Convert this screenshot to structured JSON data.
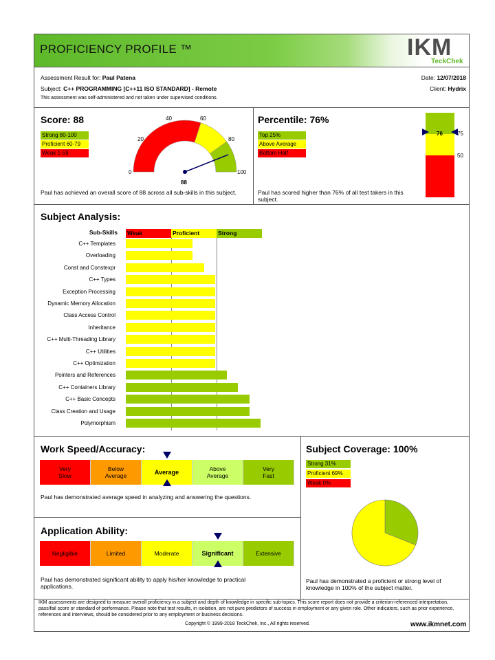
{
  "header": {
    "title": "PROFICIENCY PROFILE ™",
    "logo_main": "IKM",
    "logo_sub": "TeckChek"
  },
  "info": {
    "result_label": "Assessment Result for:",
    "candidate": "Paul Patena",
    "subject_label": "Subject:",
    "subject": "C++ PROGRAMMING [C++11 ISO STANDARD] - Remote",
    "note": "This assessment was self-administered and not taken under supervised conditions.",
    "date_label": "Date:",
    "date": "12/07/2018",
    "client_label": "Client:",
    "client": "Hydrix"
  },
  "score": {
    "title": "Score: 88",
    "value": 88,
    "legend": [
      "Strong 80-100",
      "Proficient 60-79",
      "Weak 1-59"
    ],
    "gauge_ticks": [
      "0",
      "20",
      "40",
      "60",
      "80",
      "100"
    ],
    "needle_label": "88",
    "summary": "Paul has achieved an overall score of 88 across all sub-skills in this subject."
  },
  "percentile": {
    "title": "Percentile: 76%",
    "value": 76,
    "legend": [
      "Top 25%",
      "Above Average",
      "Bottom Half"
    ],
    "bar_labels": [
      "75",
      "50"
    ],
    "marker_label": "76",
    "summary": "Paul has scored higher than 76% of all test takers in this subject."
  },
  "subject_analysis": {
    "title": "Subject Analysis:",
    "header_label": "Sub-Skills",
    "levels": [
      "Weak",
      "Proficient",
      "Strong"
    ],
    "skills": [
      {
        "name": "C++ Templates",
        "level": 0.59,
        "cat": "proficient"
      },
      {
        "name": "Overloading",
        "level": 0.59,
        "cat": "proficient"
      },
      {
        "name": "Const and Constexpr",
        "level": 0.69,
        "cat": "proficient"
      },
      {
        "name": "C++ Types",
        "level": 0.79,
        "cat": "proficient"
      },
      {
        "name": "Exception Processing",
        "level": 0.79,
        "cat": "proficient"
      },
      {
        "name": "Dynamic Memory Allocation",
        "level": 0.79,
        "cat": "proficient"
      },
      {
        "name": "Class Access Control",
        "level": 0.79,
        "cat": "proficient"
      },
      {
        "name": "Inheritance",
        "level": 0.79,
        "cat": "proficient"
      },
      {
        "name": "C++ Multi-Threading Library",
        "level": 0.79,
        "cat": "proficient"
      },
      {
        "name": "C++ Utilities",
        "level": 0.79,
        "cat": "proficient"
      },
      {
        "name": "C++ Optimization",
        "level": 0.79,
        "cat": "proficient"
      },
      {
        "name": "Pointers and References",
        "level": 0.89,
        "cat": "strong"
      },
      {
        "name": "C++ Containers Library",
        "level": 0.99,
        "cat": "strong"
      },
      {
        "name": "C++ Basic Concepts",
        "level": 1.09,
        "cat": "strong"
      },
      {
        "name": "Class Creation and Usage",
        "level": 1.09,
        "cat": "strong"
      },
      {
        "name": "Polymorphism",
        "level": 1.19,
        "cat": "strong"
      }
    ]
  },
  "speed": {
    "title": "Work Speed/Accuracy:",
    "segments": [
      "Very\nSlow",
      "Below\nAverage",
      "Average",
      "Above\nAverage",
      "Very\nFast"
    ],
    "selected": 2,
    "summary": "Paul has demonstrated average speed in analyzing and answering the questions."
  },
  "application": {
    "title": "Application Ability:",
    "segments": [
      "Negligible",
      "Limited",
      "Moderate",
      "Significant",
      "Extensive"
    ],
    "selected": 3,
    "summary": "Paul has demonstrated significant ability to apply his/her knowledge to practical applications."
  },
  "coverage": {
    "title": "Subject Coverage: 100%",
    "legend": [
      "Strong 31%",
      "Proficient 69%",
      "Weak 0%"
    ],
    "strong_pct": 31,
    "proficient_pct": 69,
    "weak_pct": 0,
    "summary": "Paul has demonstrated a proficient or strong level of knowledge in 100% of the subject matter."
  },
  "footer": {
    "disclaimer": "IKM assessments are designed to measure overall proficiency in a subject and depth of knowledge in specific sub-topics. This score report does not provide a criterion-referenced interpretation, pass/fail score or standard of performance. Please note that test results, in isolation, are not pure predictors of success in employment or any given role. Other indicators, such as prior experience, references and interviews, should be considered prior to any employment or business decisions.",
    "copyright": "Copyright © 1999-2018 TeckChek, Inc., All rights reserved.",
    "website": "www.ikmnet.com"
  },
  "colors": {
    "strong": "#99cc00",
    "proficient": "#ffff00",
    "weak": "#ff0000",
    "orange": "#ff9900",
    "lightgreen": "#ccff66",
    "header_green": "#5eb92a",
    "navy": "#000066"
  }
}
